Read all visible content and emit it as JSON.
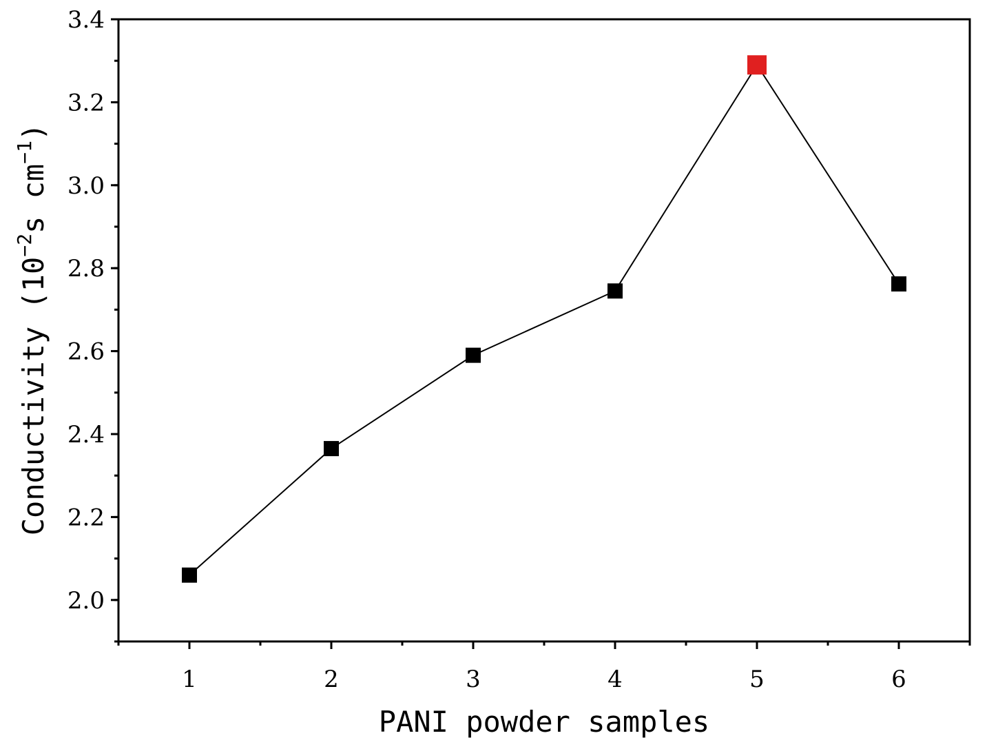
{
  "chart_data": {
    "type": "line",
    "title": "",
    "xlabel": "PANI powder samples",
    "ylabel": {
      "prefix": "Conductivity (10",
      "exp1": "−2",
      "middle": "s cm",
      "exp2": "−1",
      "suffix": ")"
    },
    "xlim": [
      0.5,
      6.5
    ],
    "ylim": [
      1.9,
      3.4
    ],
    "x_ticks": [
      1,
      2,
      3,
      4,
      5,
      6
    ],
    "x_tick_labels": [
      "1",
      "2",
      "3",
      "4",
      "5",
      "6"
    ],
    "y_ticks": [
      2.0,
      2.2,
      2.4,
      2.6,
      2.8,
      3.0,
      3.2,
      3.4
    ],
    "y_tick_labels": [
      "2.0",
      "2.2",
      "2.4",
      "2.6",
      "2.8",
      "3.0",
      "3.2",
      "3.4"
    ],
    "grid": false,
    "series": [
      {
        "x": [
          1,
          2,
          3,
          4,
          5,
          6
        ],
        "values": [
          2.06,
          2.365,
          2.59,
          2.745,
          3.29,
          2.762
        ],
        "marker": "square",
        "line_color": "#000000",
        "marker_color": "#000000",
        "highlight_index": 4,
        "highlight_color": "#e02020"
      }
    ]
  }
}
